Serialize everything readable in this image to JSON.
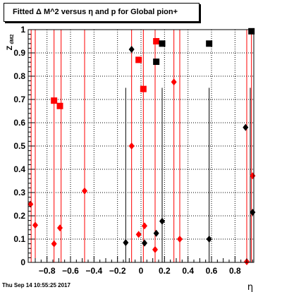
{
  "timestamp": "Thu Sep 14 10:55:25 2017",
  "colors": {
    "red": "#ff0000",
    "black": "#000000",
    "grid": "#000000"
  },
  "chart_data": {
    "type": "scatter",
    "title": "Fitted Δ M^2 versus η and p for Global pion+",
    "xlabel": "η",
    "ylabel_main": "Z",
    "ylabel_sub": "dM2",
    "xlim": [
      -0.96,
      0.96
    ],
    "ylim": [
      0,
      1.0
    ],
    "x_ticks": [
      -0.8,
      -0.6,
      -0.4,
      -0.2,
      0,
      0.2,
      0.4,
      0.6,
      0.8
    ],
    "x_tick_labels": [
      "−0.8",
      "−0.6",
      "−0.4",
      "−0.2",
      "0",
      "0.2",
      "0.4",
      "0.6",
      "0.8"
    ],
    "y_ticks": [
      0,
      0.1,
      0.2,
      0.3,
      0.4,
      0.5,
      0.6,
      0.7,
      0.8,
      0.9,
      1
    ],
    "y_tick_labels": [
      "0",
      "0.1",
      "0.2",
      "0.3",
      "0.4",
      "0.5",
      "0.6",
      "0.7",
      "0.8",
      "0.9",
      "1"
    ],
    "grid": true,
    "red_lines": [
      -0.935,
      -0.9,
      -0.74,
      -0.68,
      -0.48,
      -0.08,
      0.02,
      0.12,
      0.28,
      0.33,
      0.9,
      0.94
    ],
    "black_lines": [
      -0.13,
      0.18,
      0.58,
      0.93
    ],
    "series": [
      {
        "color": "red",
        "marker": "square",
        "points": [
          [
            -0.74,
            0.695
          ],
          [
            -0.69,
            0.672
          ],
          [
            -0.02,
            0.87
          ],
          [
            0.02,
            0.745
          ],
          [
            0.13,
            0.95
          ]
        ]
      },
      {
        "color": "red",
        "marker": "diamond",
        "points": [
          [
            -0.94,
            0.25
          ],
          [
            -0.9,
            0.16
          ],
          [
            -0.74,
            0.08
          ],
          [
            -0.69,
            0.148
          ],
          [
            -0.48,
            0.307
          ],
          [
            -0.08,
            0.5
          ],
          [
            -0.02,
            0.12
          ],
          [
            0.03,
            0.157
          ],
          [
            0.12,
            0.055
          ],
          [
            0.28,
            0.775
          ],
          [
            0.33,
            0.1
          ],
          [
            0.9,
            0.003
          ],
          [
            0.95,
            0.372
          ]
        ]
      },
      {
        "color": "black",
        "marker": "square",
        "points": [
          [
            0.13,
            0.862
          ],
          [
            0.18,
            0.94
          ],
          [
            0.58,
            0.94
          ],
          [
            0.94,
            0.993
          ]
        ]
      },
      {
        "color": "black",
        "marker": "diamond",
        "points": [
          [
            -0.13,
            0.085
          ],
          [
            -0.08,
            0.915
          ],
          [
            0.03,
            0.083
          ],
          [
            0.13,
            0.125
          ],
          [
            0.18,
            0.177
          ],
          [
            0.58,
            0.1
          ],
          [
            0.89,
            0.58
          ],
          [
            0.95,
            0.215
          ]
        ]
      }
    ]
  }
}
